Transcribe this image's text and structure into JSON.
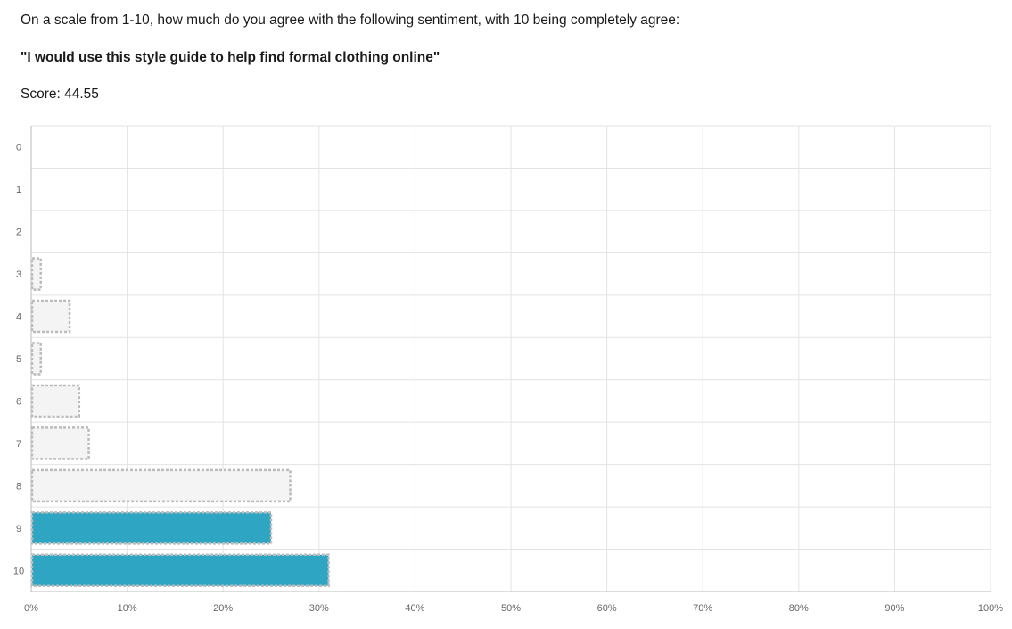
{
  "question": "On a scale from 1-10, how much do you agree with the following sentiment, with 10 being completely agree:",
  "statement": "\"I would use this style guide to help find formal clothing online\"",
  "score": {
    "label": "Score:",
    "value": "44.55"
  },
  "chart_data": {
    "type": "bar",
    "orientation": "horizontal",
    "categories": [
      "0",
      "1",
      "2",
      "3",
      "4",
      "5",
      "6",
      "7",
      "8",
      "9",
      "10"
    ],
    "values": [
      0,
      0,
      0,
      1,
      4,
      1,
      5,
      6,
      27,
      25,
      31
    ],
    "highlighted": [
      false,
      false,
      false,
      false,
      false,
      false,
      false,
      false,
      false,
      true,
      true
    ],
    "xlim": [
      0,
      100
    ],
    "x_tick_labels": [
      "0%",
      "10%",
      "20%",
      "30%",
      "40%",
      "50%",
      "60%",
      "70%",
      "80%",
      "90%",
      "100%"
    ],
    "grid": true,
    "colors": {
      "highlight": "#2ea5c2",
      "muted_fill": "#f4f4f4",
      "bar_border": "#bbbbbb",
      "grid": "#e3e3e3",
      "axis": "#bbbbbb"
    }
  }
}
